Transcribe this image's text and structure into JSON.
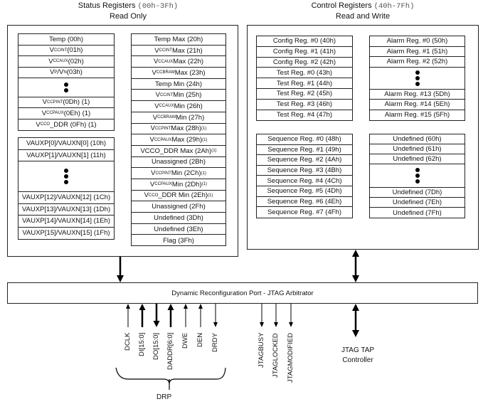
{
  "status": {
    "title": "Status Registers",
    "range": "(00h-3Fh)",
    "subtitle": "Read Only",
    "group_a": [
      {
        "v": "Temp (00h)"
      },
      {
        "v": "V",
        "sub": "CCINT",
        "rest": " (01h)"
      },
      {
        "v": "V",
        "sub": "CCAUX",
        "rest": " (02h)"
      },
      {
        "v": "V",
        "sub": "P",
        "rest": "/V",
        "sub2": "N",
        "rest2": " (03h)"
      },
      {
        "ellipsis": true
      },
      {
        "v": "V",
        "sub": "CCPINT",
        "rest": " (0Dh) (1)"
      },
      {
        "v": "V",
        "sub": "CCPAUX",
        "rest": " (0Eh) (1)"
      },
      {
        "v": "V",
        "sub": "CCO",
        "rest": "_DDR (0Fh) (1)"
      }
    ],
    "group_b": [
      {
        "v": "VAUXP[0]/VAUXN[0] (10h)"
      },
      {
        "v": "VAUXP[1]/VAUXN[1] (11h)"
      },
      {
        "ellipsis": true
      },
      {
        "v": "VAUXP[12]/VAUXN[12] (1Ch)"
      },
      {
        "v": "VAUXP[13]/VAUXN[13] (1Dh)"
      },
      {
        "v": "VAUXP[14]/VAUXN[14] (1Eh)"
      },
      {
        "v": "VAUXP[15]/VAUXN[15] (1Fh)"
      }
    ],
    "group_c": [
      {
        "v": "Temp Max  (20h)"
      },
      {
        "v": "V",
        "sub": "CCINT",
        "rest": " Max  (21h)"
      },
      {
        "v": "V",
        "sub": "CCAUX",
        "rest": " Max  (22h)"
      },
      {
        "v": "V",
        "sub": "CCBRAM",
        "rest": " Max  (23h)"
      },
      {
        "v": "Temp Min  (24h)"
      },
      {
        "v": "V",
        "sub": "CCINT",
        "rest": " Min  (25h)"
      },
      {
        "v": "V",
        "sub": "CCAUX",
        "rest": " Min  (26h)"
      },
      {
        "v": "V",
        "sub": "CCBRAM",
        "rest": " Min  (27h)"
      },
      {
        "v": "V",
        "sub": "CCPINT",
        "rest": " Max (28h)",
        "sup": "(1)"
      },
      {
        "v": "V",
        "sub": "CCPAUX",
        "rest": " Max (29h)",
        "sup": "(1)"
      },
      {
        "v": "VCCO_DDR Max (2Ah)",
        "sup": "(1)"
      },
      {
        "v": "Unassigned (2Bh)"
      },
      {
        "v": "V",
        "sub": "CCPINT",
        "rest": " Min (2Ch)",
        "sup": "(1)"
      },
      {
        "v": "V",
        "sub": "CCPAUX",
        "rest": " Min (2Dh)",
        "sup": "(1)"
      },
      {
        "v": "V",
        "sub": "CCO",
        "rest": "_DDR Min (2Eh)",
        "sup": "(1)"
      },
      {
        "v": "Unassigned (2Fh)"
      },
      {
        "v": "Undefined (3Dh)"
      },
      {
        "v": "Undefined (3Eh)"
      },
      {
        "v": "Flag (3Fh)"
      }
    ]
  },
  "control": {
    "title": "Control Registers",
    "range": "(40h-7Fh)",
    "subtitle": "Read and Write",
    "config_test": [
      {
        "v": "Config Reg. #0 (40h)"
      },
      {
        "v": "Config Reg. #1 (41h)"
      },
      {
        "v": "Config Reg. #2 (42h)"
      },
      {
        "v": "Test Reg. #0 (43h)"
      },
      {
        "v": "Test Reg. #1 (44h)"
      },
      {
        "v": "Test Reg. #2 (45h)"
      },
      {
        "v": "Test Reg. #3 (46h)"
      },
      {
        "v": "Test Reg. #4 (47h)"
      }
    ],
    "alarm": [
      {
        "v": "Alarm Reg. #0 (50h)"
      },
      {
        "v": "Alarm Reg. #1 (51h)"
      },
      {
        "v": "Alarm Reg. #2 (52h)"
      },
      {
        "ellipsis": true
      },
      {
        "v": "Alarm Reg. #13 (5Dh)"
      },
      {
        "v": "Alarm Reg. #14 (5Eh)"
      },
      {
        "v": "Alarm Reg. #15 (5Fh)"
      }
    ],
    "sequence": [
      {
        "v": "Sequence Reg. #0 (48h)"
      },
      {
        "v": "Sequence Reg. #1 (49h)"
      },
      {
        "v": "Sequence Reg. #2 (4Ah)"
      },
      {
        "v": "Sequence Reg. #3 (4Bh)"
      },
      {
        "v": "Sequence Reg. #4 (4Ch)"
      },
      {
        "v": "Sequence Reg. #5 (4Dh)"
      },
      {
        "v": "Sequence Reg. #6 (4Eh)"
      },
      {
        "v": "Sequence Reg. #7 (4Fh)"
      }
    ],
    "undefined": [
      {
        "v": "Undefined (60h)"
      },
      {
        "v": "Undefined (61h)"
      },
      {
        "v": "Undefined (62h)"
      },
      {
        "ellipsis": true
      },
      {
        "v": "Undefined (7Dh)"
      },
      {
        "v": "Undefined (7Eh)"
      },
      {
        "v": "Undefined (7Fh)"
      }
    ]
  },
  "arbitrator": {
    "label": "Dynamic Reconfiguration Port - JTAG Arbitrator"
  },
  "signals": [
    {
      "name": "DCLK",
      "dir": "in",
      "bus": false
    },
    {
      "name": "DI[15:0]",
      "dir": "in",
      "bus": true
    },
    {
      "name": "DO[15:0]",
      "dir": "out",
      "bus": true
    },
    {
      "name": "DADDR[6:0]",
      "dir": "in",
      "bus": true
    },
    {
      "name": "DWE",
      "dir": "in",
      "bus": false
    },
    {
      "name": "DEN",
      "dir": "in",
      "bus": false
    },
    {
      "name": "DRDY",
      "dir": "out",
      "bus": false
    },
    {
      "name": "JTAGBUSY",
      "dir": "out",
      "bus": false
    },
    {
      "name": "JTAGLOCKED",
      "dir": "out",
      "bus": false
    },
    {
      "name": "JTAGMODIFIED",
      "dir": "out",
      "bus": false
    }
  ],
  "drp_label": "DRP",
  "jtag_tap": {
    "line1": "JTAG TAP",
    "line2": "Controller"
  }
}
